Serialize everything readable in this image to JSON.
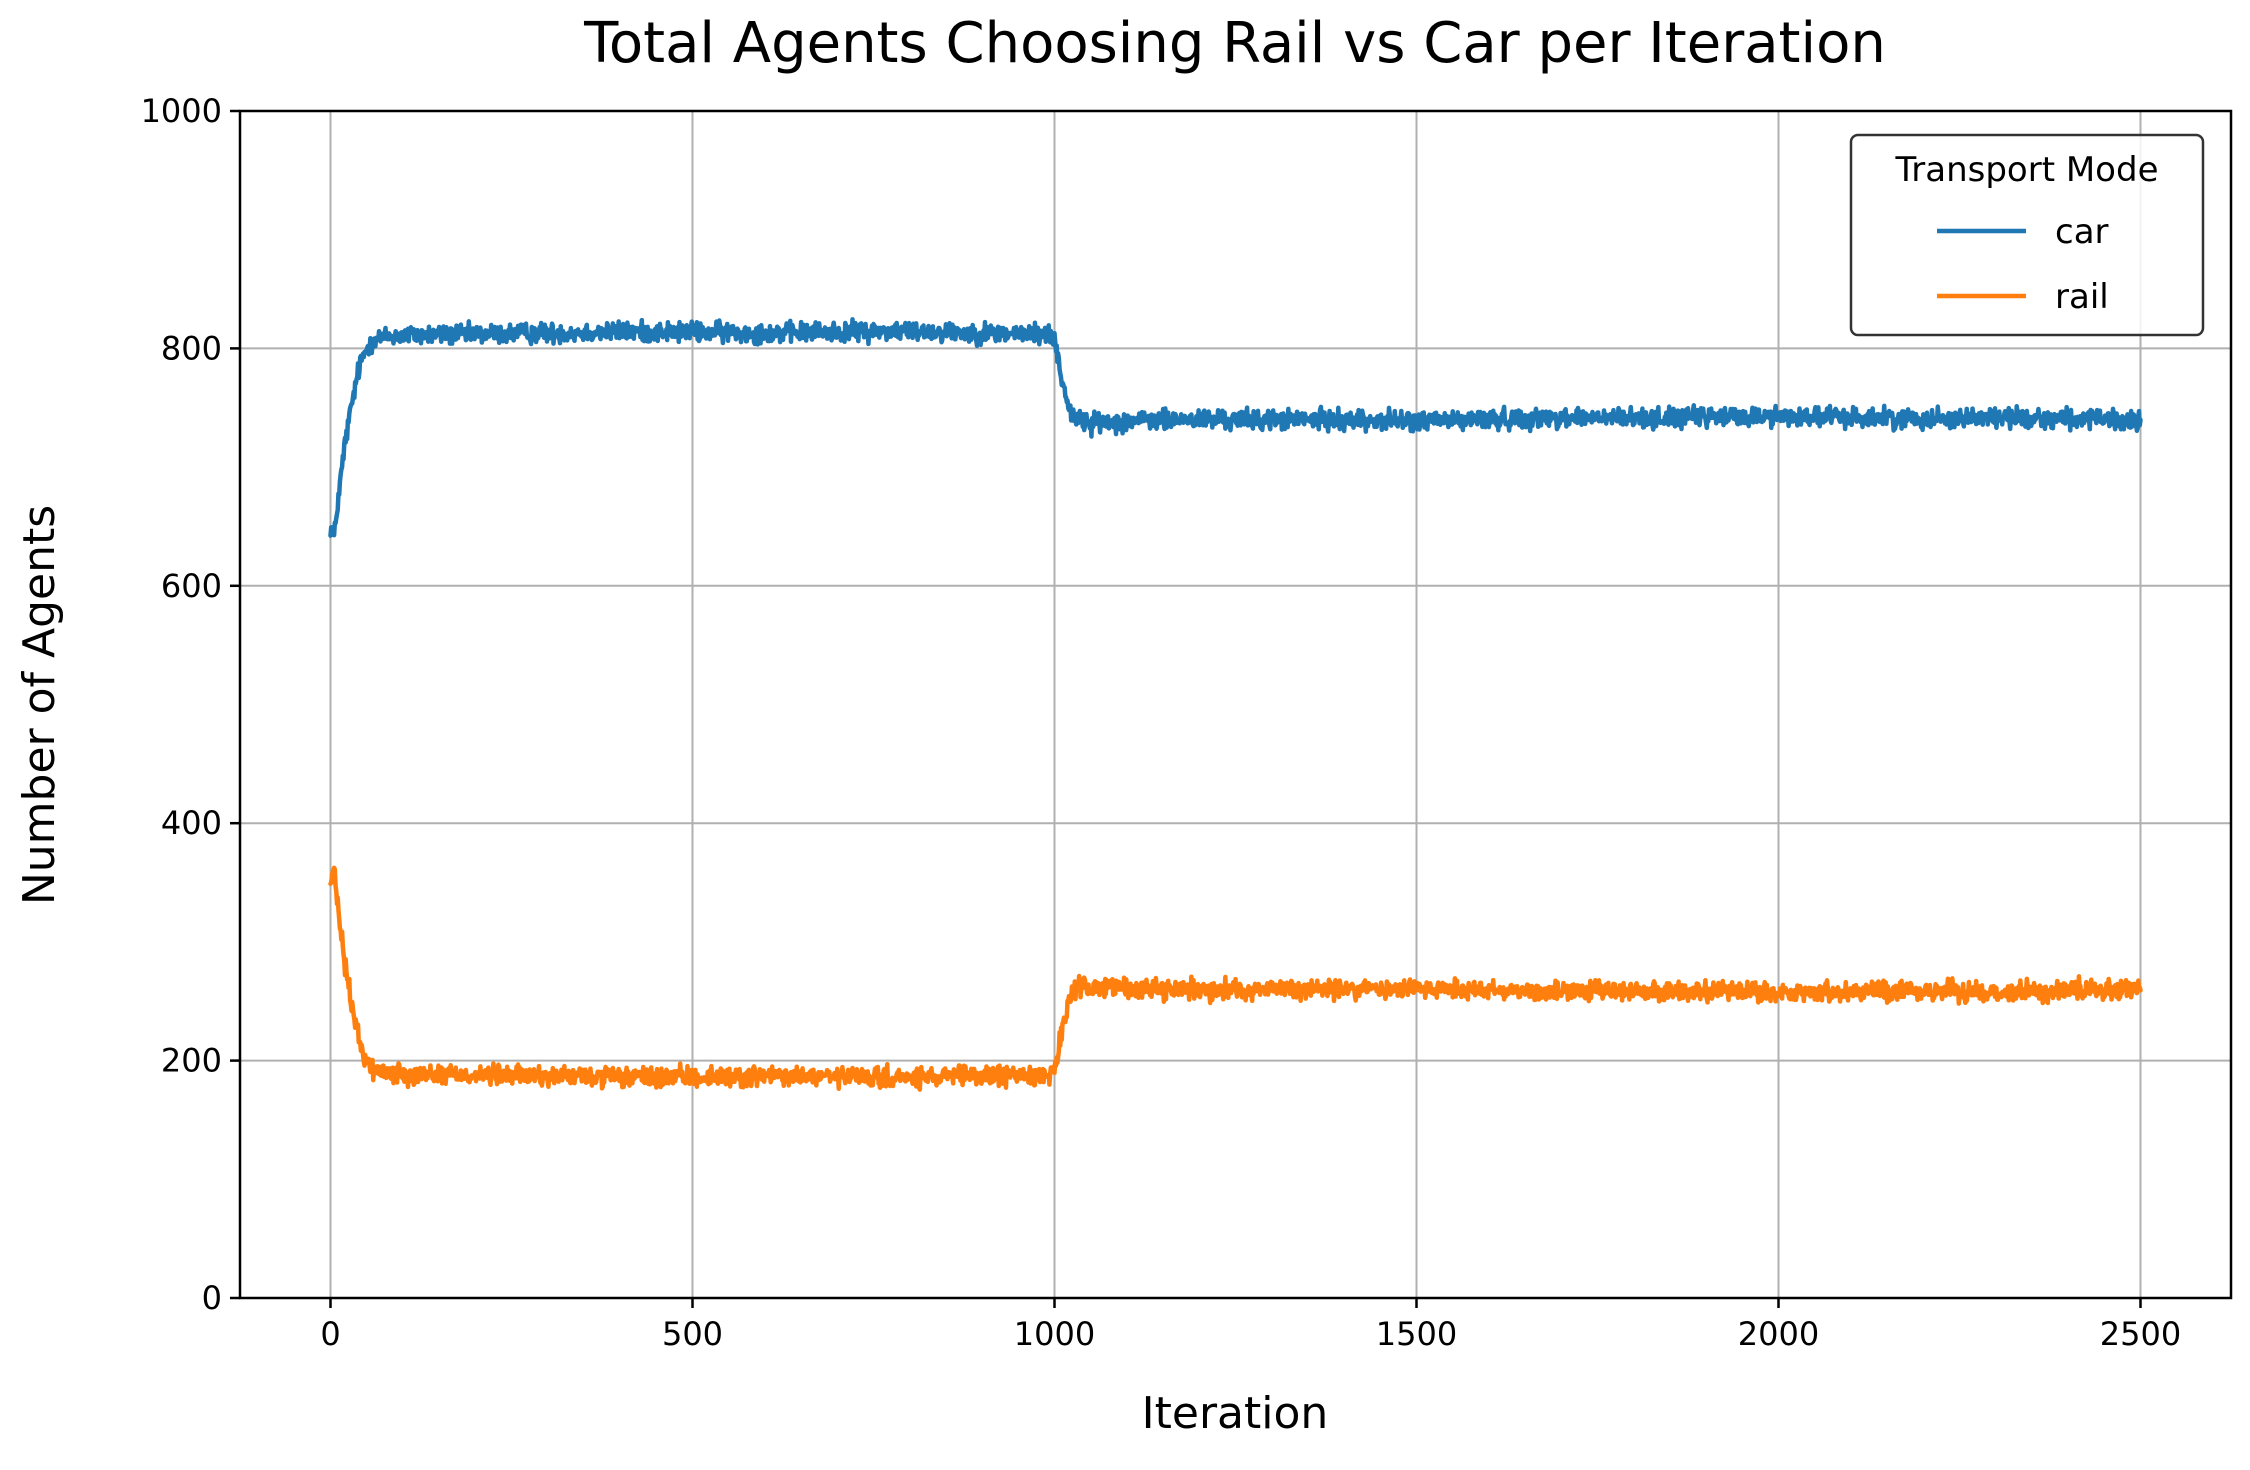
{
  "chart_data": {
    "type": "line",
    "title": "Total Agents Choosing Rail vs Car per Iteration",
    "xlabel": "Iteration",
    "ylabel": "Number of Agents",
    "xlim": [
      -125,
      2625
    ],
    "ylim": [
      0,
      1000
    ],
    "xticks": [
      0,
      500,
      1000,
      1500,
      2000,
      2500
    ],
    "yticks": [
      0,
      200,
      400,
      600,
      800,
      1000
    ],
    "grid": true,
    "legend": {
      "title": "Transport Mode",
      "placement": "top-right"
    },
    "x_range": [
      0,
      2500
    ],
    "series": [
      {
        "name": "car",
        "color": "#1f77b4",
        "points": [
          [
            0,
            650
          ],
          [
            5,
            640
          ],
          [
            10,
            670
          ],
          [
            20,
            720
          ],
          [
            30,
            755
          ],
          [
            40,
            785
          ],
          [
            50,
            800
          ],
          [
            60,
            808
          ],
          [
            80,
            810
          ],
          [
            100,
            811
          ],
          [
            200,
            812
          ],
          [
            300,
            813
          ],
          [
            400,
            814
          ],
          [
            500,
            814
          ],
          [
            600,
            813
          ],
          [
            700,
            814
          ],
          [
            800,
            815
          ],
          [
            900,
            813
          ],
          [
            990,
            812
          ],
          [
            1000,
            808
          ],
          [
            1010,
            775
          ],
          [
            1020,
            750
          ],
          [
            1030,
            740
          ],
          [
            1050,
            737
          ],
          [
            1100,
            739
          ],
          [
            1200,
            740
          ],
          [
            1300,
            740
          ],
          [
            1400,
            740
          ],
          [
            1500,
            739
          ],
          [
            1600,
            740
          ],
          [
            1700,
            742
          ],
          [
            1800,
            741
          ],
          [
            1900,
            742
          ],
          [
            2000,
            743
          ],
          [
            2100,
            742
          ],
          [
            2200,
            741
          ],
          [
            2300,
            742
          ],
          [
            2400,
            741
          ],
          [
            2500,
            738
          ]
        ],
        "noise": 6
      },
      {
        "name": "rail",
        "color": "#ff7f0e",
        "points": [
          [
            0,
            350
          ],
          [
            5,
            360
          ],
          [
            10,
            330
          ],
          [
            20,
            280
          ],
          [
            30,
            245
          ],
          [
            40,
            215
          ],
          [
            50,
            200
          ],
          [
            60,
            192
          ],
          [
            80,
            190
          ],
          [
            100,
            189
          ],
          [
            200,
            188
          ],
          [
            300,
            187
          ],
          [
            400,
            186
          ],
          [
            500,
            186
          ],
          [
            600,
            187
          ],
          [
            700,
            186
          ],
          [
            800,
            185
          ],
          [
            900,
            187
          ],
          [
            990,
            188
          ],
          [
            1000,
            192
          ],
          [
            1010,
            225
          ],
          [
            1020,
            250
          ],
          [
            1030,
            260
          ],
          [
            1050,
            263
          ],
          [
            1100,
            261
          ],
          [
            1200,
            260
          ],
          [
            1300,
            260
          ],
          [
            1400,
            260
          ],
          [
            1500,
            261
          ],
          [
            1600,
            260
          ],
          [
            1700,
            258
          ],
          [
            1800,
            259
          ],
          [
            1900,
            258
          ],
          [
            2000,
            257
          ],
          [
            2100,
            258
          ],
          [
            2200,
            259
          ],
          [
            2300,
            258
          ],
          [
            2400,
            259
          ],
          [
            2500,
            262
          ]
        ],
        "noise": 6
      }
    ]
  }
}
